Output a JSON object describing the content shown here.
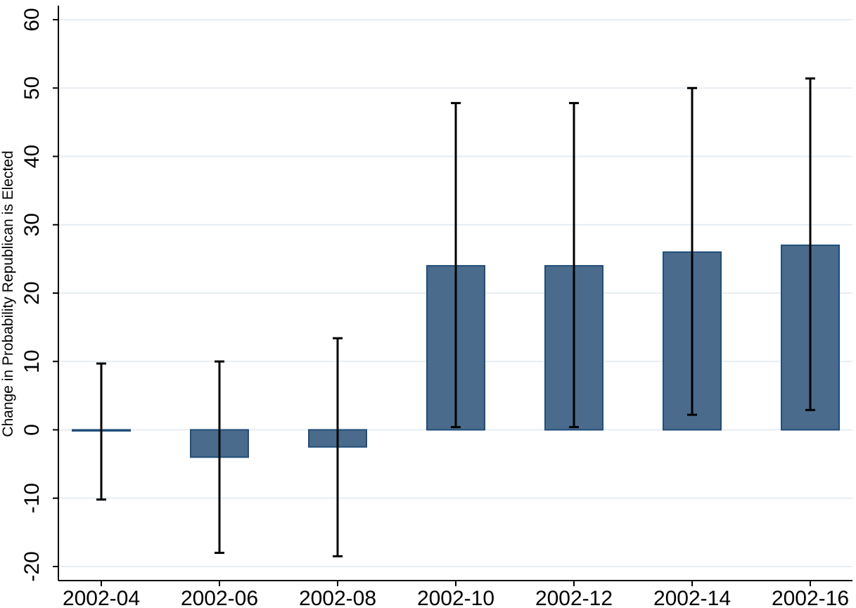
{
  "chart_data": {
    "type": "bar",
    "title": "",
    "xlabel": "",
    "ylabel": "Change in Probability Republican is Elected",
    "categories": [
      "2002-04",
      "2002-06",
      "2002-08",
      "2002-10",
      "2002-12",
      "2002-14",
      "2002-16"
    ],
    "values": [
      0,
      -4,
      -2.5,
      24,
      24,
      26,
      27
    ],
    "ci_lower": [
      -10.2,
      -18,
      -18.5,
      0.4,
      0.4,
      2.2,
      2.9
    ],
    "ci_upper": [
      9.7,
      10,
      13.4,
      47.8,
      47.8,
      50,
      51.4
    ],
    "ylim": [
      -22,
      60
    ],
    "yticks": [
      -20,
      -10,
      0,
      10,
      20,
      30,
      40,
      50,
      60
    ],
    "grid": true,
    "legend": "none",
    "colors": {
      "bar_fill": "#4a6b8c",
      "bar_edge": "#1f4e79",
      "error_bar": "#000000",
      "gridline": "#e6eef3"
    }
  }
}
